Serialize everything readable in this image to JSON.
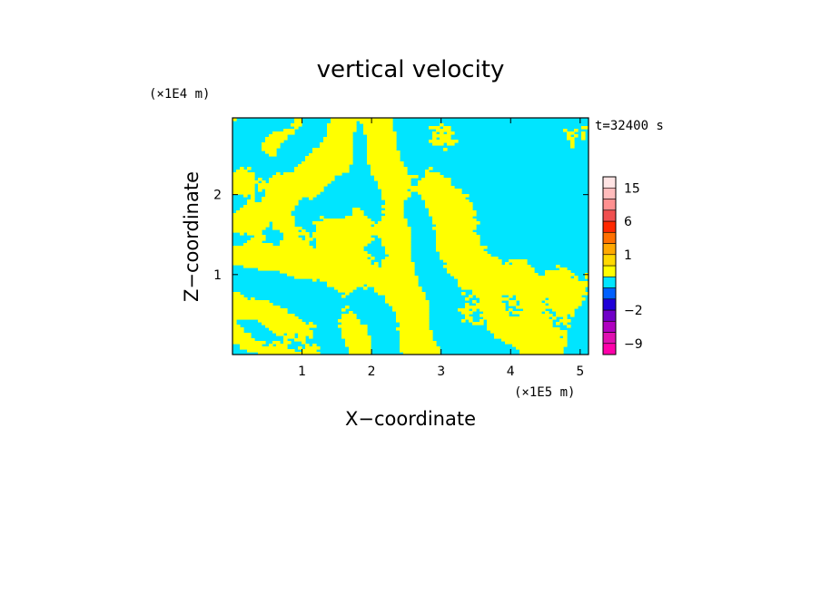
{
  "chart_data": {
    "type": "heatmap",
    "title": "vertical velocity",
    "xlabel": "X−coordinate",
    "ylabel": "Z−coordinate",
    "x_unit": "(×1E5 m)",
    "y_unit": "(×1E4 m)",
    "time_label": "t=32400 s",
    "xlim": [
      0,
      5.12
    ],
    "ylim": [
      0,
      2.96
    ],
    "x_ticks": [
      1,
      2,
      3,
      4,
      5
    ],
    "x_tick_labels": [
      "1",
      "2",
      "3",
      "4",
      "5"
    ],
    "y_ticks": [
      1,
      2
    ],
    "y_tick_labels": [
      "1",
      "2"
    ],
    "field_colors": {
      "positive": "#ffff00",
      "negative": "#00e5ff",
      "frame": "#000000"
    },
    "colorbar": {
      "levels": [
        -12,
        -9,
        -6,
        -4,
        -2,
        -1,
        -0.5,
        0,
        0.5,
        1,
        2,
        4,
        6,
        9,
        12,
        15,
        20
      ],
      "colors": [
        "#ff00aa",
        "#e010b0",
        "#b000c0",
        "#7000c8",
        "#2000d8",
        "#0060ff",
        "#00e5ff",
        "#ffff00",
        "#ffd800",
        "#ffa800",
        "#ff7000",
        "#ff2800",
        "#f05050",
        "#ff9090",
        "#ffbcbc",
        "#ffe4e4"
      ],
      "tick_values": [
        -9,
        -2,
        1,
        6,
        15
      ],
      "tick_labels": [
        "−9",
        "−2",
        "1",
        "6",
        "15"
      ]
    }
  }
}
